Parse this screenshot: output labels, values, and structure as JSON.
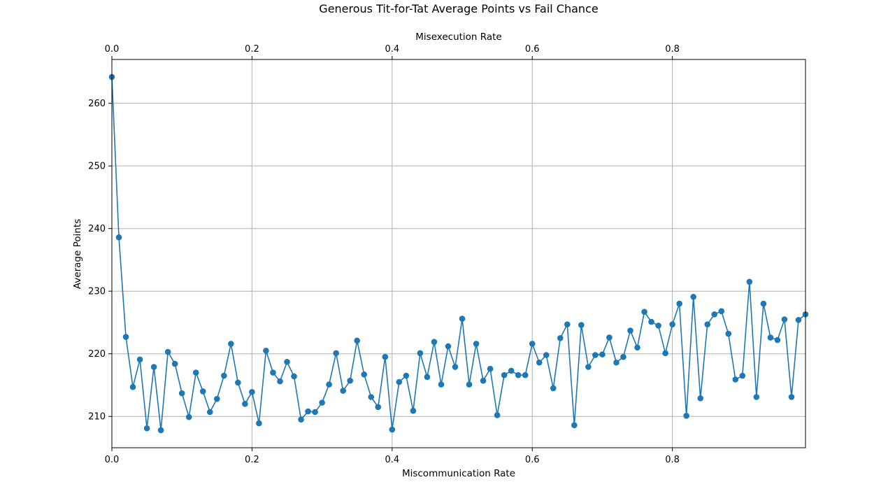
{
  "chart_data": {
    "type": "line",
    "title": "Generous Tit-for-Tat Average Points vs Fail Chance",
    "xlabel": "Miscommunication Rate",
    "xlabel_top": "Misexecution Rate",
    "ylabel": "Average Points",
    "xlim": [
      0,
      0.99
    ],
    "ylim": [
      205,
      267
    ],
    "x_ticks": [
      0,
      0.2,
      0.4,
      0.6,
      0.8
    ],
    "x_tick_labels": [
      "0.0",
      "0.2",
      "0.4",
      "0.6",
      "0.8"
    ],
    "y_ticks": [
      210,
      220,
      230,
      240,
      250,
      260
    ],
    "y_tick_labels": [
      "210",
      "220",
      "230",
      "240",
      "250",
      "260"
    ],
    "grid": true,
    "series_color": "#1f77b4",
    "marker": "circle",
    "series": [
      {
        "x": [
          0.0,
          0.01,
          0.02,
          0.03,
          0.04,
          0.05,
          0.06,
          0.07,
          0.08,
          0.09,
          0.1,
          0.11,
          0.12,
          0.13,
          0.14,
          0.15,
          0.16,
          0.17,
          0.18,
          0.19,
          0.2,
          0.21,
          0.22,
          0.23,
          0.24,
          0.25,
          0.26,
          0.27,
          0.28,
          0.29,
          0.3,
          0.31,
          0.32,
          0.33,
          0.34,
          0.35,
          0.36,
          0.37,
          0.38,
          0.39,
          0.4,
          0.41,
          0.42,
          0.43,
          0.44,
          0.45,
          0.46,
          0.47,
          0.48,
          0.49,
          0.5,
          0.51,
          0.52,
          0.53,
          0.54,
          0.55,
          0.56,
          0.57,
          0.58,
          0.59,
          0.6,
          0.61,
          0.62,
          0.63,
          0.64,
          0.65,
          0.66,
          0.67,
          0.68,
          0.69,
          0.7,
          0.71,
          0.72,
          0.73,
          0.74,
          0.75,
          0.76,
          0.77,
          0.78,
          0.79,
          0.8,
          0.81,
          0.82,
          0.83,
          0.84,
          0.85,
          0.86,
          0.87,
          0.88,
          0.89,
          0.9,
          0.91,
          0.92,
          0.93,
          0.94,
          0.95,
          0.96,
          0.97,
          0.98,
          0.99
        ],
        "values": [
          264.2,
          238.6,
          222.7,
          214.7,
          219.1,
          208.1,
          217.9,
          207.8,
          220.3,
          218.4,
          213.7,
          209.9,
          217.0,
          214.0,
          210.7,
          212.8,
          216.5,
          221.6,
          215.4,
          212.0,
          213.9,
          208.9,
          220.5,
          217.0,
          215.6,
          218.7,
          216.4,
          209.5,
          210.8,
          210.7,
          212.2,
          215.1,
          220.1,
          214.1,
          215.7,
          222.1,
          216.7,
          213.1,
          211.5,
          219.5,
          207.9,
          215.5,
          216.5,
          210.9,
          220.1,
          216.3,
          221.9,
          215.1,
          221.2,
          217.9,
          225.6,
          215.1,
          221.6,
          215.7,
          217.6,
          210.2,
          216.6,
          217.3,
          216.6,
          216.6,
          221.6,
          218.6,
          219.8,
          214.5,
          222.5,
          224.7,
          208.6,
          224.6,
          217.9,
          219.8,
          219.9,
          222.6,
          218.6,
          219.5,
          223.7,
          221.0,
          226.7,
          225.1,
          224.5,
          220.1,
          224.7,
          228.0,
          210.1,
          229.1,
          212.9,
          224.7,
          226.3,
          226.8,
          223.2,
          215.9,
          216.5,
          231.5,
          213.1,
          228.0,
          222.6,
          222.2,
          225.5,
          213.1,
          225.4,
          226.3
        ]
      }
    ]
  }
}
